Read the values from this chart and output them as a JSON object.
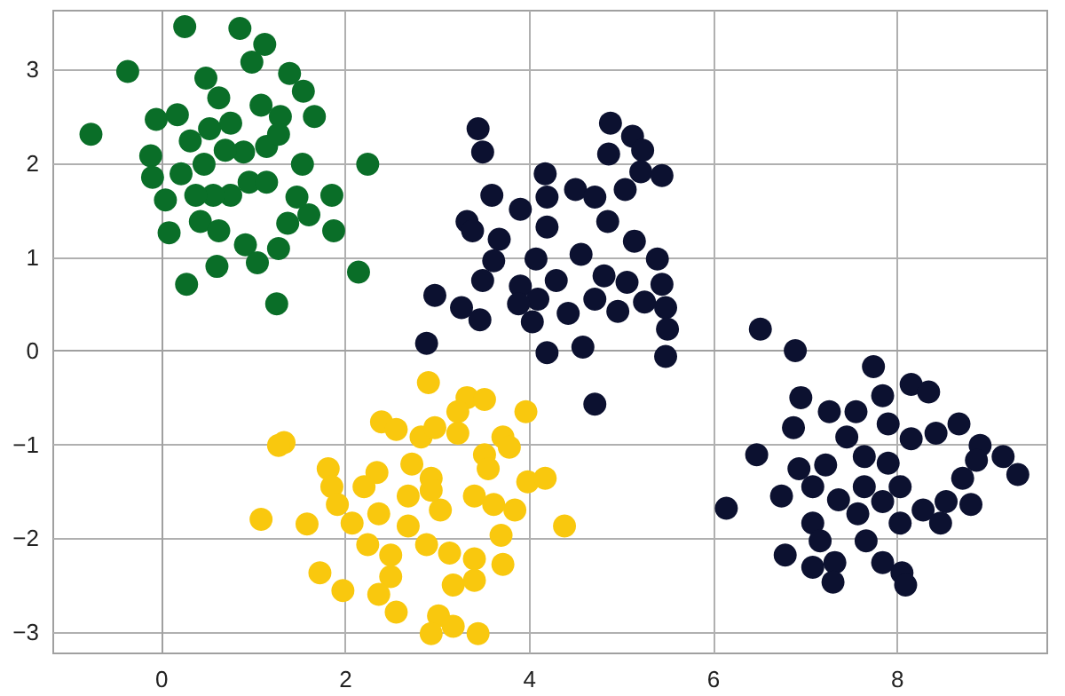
{
  "chart_data": {
    "type": "scatter",
    "xlim": [
      -1.18,
      9.63
    ],
    "ylim": [
      -3.23,
      3.63
    ],
    "xticks": [
      0,
      2,
      4,
      6,
      8
    ],
    "yticks": [
      -3,
      -2,
      -1,
      0,
      1,
      2,
      3
    ],
    "grid": true,
    "marker": "circle",
    "series": [
      {
        "color": "#0a6e28",
        "x": [
          0.25,
          0.85,
          1.12,
          0.98,
          -0.37,
          0.48,
          1.39,
          1.54,
          1.66,
          -0.77,
          -0.06,
          0.17,
          0.31,
          -0.12,
          -0.1,
          0.21,
          0.46,
          0.04,
          0.08,
          0.6,
          0.27,
          0.42,
          0.62,
          0.91,
          1.04,
          1.27,
          1.25,
          1.37,
          1.6,
          1.87,
          2.14,
          1.85,
          2.24,
          1.53,
          1.47,
          1.29,
          1.08,
          0.62,
          0.75,
          0.89,
          0.69,
          1.14,
          0.95,
          0.75,
          1.14,
          0.56,
          0.37,
          0.52,
          1.27
        ],
        "values": [
          3.46,
          3.44,
          3.27,
          3.08,
          2.98,
          2.91,
          2.96,
          2.77,
          2.5,
          2.31,
          2.47,
          2.52,
          2.24,
          2.08,
          1.85,
          1.89,
          1.99,
          1.61,
          1.26,
          0.9,
          0.71,
          1.38,
          1.28,
          1.13,
          0.94,
          1.09,
          0.5,
          1.36,
          1.45,
          1.28,
          0.84,
          1.66,
          1.99,
          1.99,
          1.64,
          2.5,
          2.62,
          2.7,
          2.43,
          2.12,
          2.14,
          2.18,
          1.8,
          1.66,
          1.8,
          1.66,
          1.66,
          2.37,
          2.31
        ]
      },
      {
        "color": "#0c1130",
        "x": [
          3.44,
          3.49,
          4.88,
          5.12,
          5.23,
          4.86,
          5.21,
          5.44,
          5.04,
          4.17,
          3.59,
          3.9,
          4.19,
          4.5,
          4.71,
          3.32,
          3.38,
          3.67,
          4.19,
          4.85,
          5.14,
          5.39,
          3.61,
          3.49,
          2.97,
          3.26,
          3.46,
          2.88,
          3.9,
          4.07,
          4.56,
          4.81,
          5.06,
          5.44,
          5.25,
          5.48,
          5.5,
          5.48,
          4.96,
          4.71,
          4.42,
          4.03,
          4.19,
          4.58,
          4.71,
          4.29,
          4.09,
          3.88,
          6.51,
          6.89,
          7.74,
          6.95,
          7.26,
          6.87,
          7.55,
          7.84,
          8.15,
          8.34,
          8.67,
          8.9,
          9.15,
          9.31,
          6.47,
          6.93,
          6.14,
          6.74,
          7.22,
          7.64,
          7.9,
          8.15,
          8.42,
          8.86,
          8.71,
          8.8,
          8.53,
          8.28,
          8.03,
          7.84,
          7.57,
          7.36,
          7.08,
          7.08,
          7.16,
          6.78,
          7.08,
          7.32,
          7.3,
          7.66,
          7.84,
          8.05,
          8.09,
          8.47,
          7.45,
          7.9,
          8.03,
          7.64
        ],
        "values": [
          2.37,
          2.12,
          2.43,
          2.29,
          2.14,
          2.1,
          1.91,
          1.87,
          1.72,
          1.89,
          1.66,
          1.51,
          1.64,
          1.72,
          1.64,
          1.38,
          1.28,
          1.19,
          1.32,
          1.38,
          1.17,
          0.98,
          0.96,
          0.75,
          0.59,
          0.46,
          0.33,
          0.08,
          0.69,
          0.98,
          1.03,
          0.8,
          0.73,
          0.71,
          0.52,
          0.46,
          0.23,
          -0.06,
          0.42,
          0.55,
          0.4,
          0.31,
          -0.02,
          0.04,
          -0.57,
          0.75,
          0.55,
          0.5,
          0.23,
          0.0,
          -0.17,
          -0.5,
          -0.65,
          -0.82,
          -0.65,
          -0.48,
          -0.36,
          -0.44,
          -0.78,
          -1.01,
          -1.13,
          -1.32,
          -1.11,
          -1.26,
          -1.68,
          -1.55,
          -1.22,
          -1.13,
          -1.2,
          -0.94,
          -0.88,
          -1.17,
          -1.36,
          -1.64,
          -1.61,
          -1.7,
          -1.84,
          -1.61,
          -1.74,
          -1.59,
          -1.45,
          -1.84,
          -2.03,
          -2.18,
          -2.31,
          -2.26,
          -2.47,
          -2.03,
          -2.26,
          -2.37,
          -2.5,
          -1.84,
          -0.92,
          -0.78,
          -1.45,
          -1.45
        ]
      },
      {
        "color": "#f9c80e",
        "x": [
          2.9,
          3.32,
          3.51,
          3.22,
          3.96,
          2.39,
          2.55,
          1.33,
          1.27,
          2.82,
          2.97,
          3.22,
          3.71,
          3.78,
          2.72,
          1.81,
          1.85,
          2.34,
          2.2,
          2.93,
          3.51,
          3.55,
          3.98,
          4.17,
          3.4,
          3.61,
          3.84,
          1.08,
          1.58,
          1.91,
          2.07,
          2.36,
          2.68,
          3.03,
          4.38,
          3.69,
          2.24,
          2.49,
          2.88,
          3.13,
          3.4,
          3.71,
          1.72,
          1.97,
          2.49,
          2.36,
          2.55,
          3.17,
          3.4,
          3.01,
          2.93,
          3.17,
          3.44,
          2.93,
          2.68
        ],
        "values": [
          -0.34,
          -0.5,
          -0.52,
          -0.65,
          -0.65,
          -0.76,
          -0.84,
          -0.98,
          -1.01,
          -0.92,
          -0.82,
          -0.88,
          -0.92,
          -1.03,
          -1.21,
          -1.26,
          -1.45,
          -1.3,
          -1.45,
          -1.36,
          -1.11,
          -1.26,
          -1.4,
          -1.36,
          -1.55,
          -1.64,
          -1.7,
          -1.8,
          -1.85,
          -1.64,
          -1.84,
          -1.74,
          -1.87,
          -1.7,
          -1.87,
          -1.97,
          -2.07,
          -2.18,
          -2.07,
          -2.16,
          -2.22,
          -2.28,
          -2.37,
          -2.56,
          -2.41,
          -2.6,
          -2.79,
          -2.5,
          -2.45,
          -2.83,
          -3.02,
          -2.94,
          -3.02,
          -1.49,
          -1.55
        ]
      }
    ]
  }
}
